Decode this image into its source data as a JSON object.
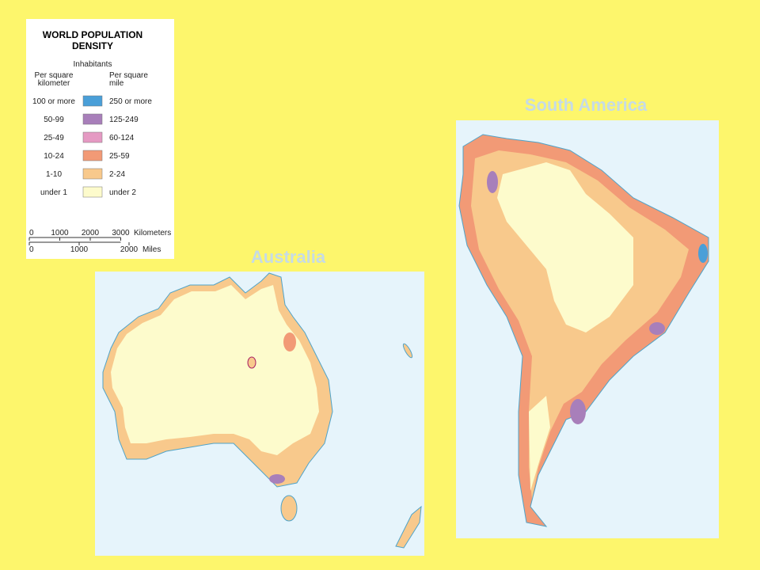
{
  "legend": {
    "title": [
      "WORLD POPULATION",
      "DENSITY"
    ],
    "subtitle": "Inhabitants",
    "col_km": [
      "Per square",
      "kilometer"
    ],
    "col_mi": [
      "Per square",
      "mile"
    ],
    "rows": [
      {
        "km": "100 or more",
        "mi": "250 or more",
        "color": "#4a9fd8"
      },
      {
        "km": "50-99",
        "mi": "125-249",
        "color": "#a87fba"
      },
      {
        "km": "25-49",
        "mi": "60-124",
        "color": "#e59ac3"
      },
      {
        "km": "10-24",
        "mi": "25-59",
        "color": "#f29a76"
      },
      {
        "km": "1-10",
        "mi": "2-24",
        "color": "#f8c98c"
      },
      {
        "km": "under 1",
        "mi": "under 2",
        "color": "#fdfbcc"
      }
    ],
    "scale": {
      "km_ticks": [
        0,
        1000,
        2000,
        3000
      ],
      "km_unit": "Kilometers",
      "mi_ticks": [
        0,
        1000,
        2000
      ],
      "mi_unit": "Miles"
    }
  },
  "maps": [
    {
      "title": "Australia"
    },
    {
      "title": "South America"
    }
  ]
}
